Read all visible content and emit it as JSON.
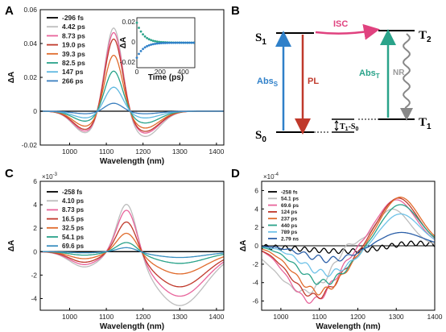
{
  "panels": {
    "A": {
      "letter": "A",
      "xlabel": "Wavelength (nm)",
      "ylabel": "ΔA",
      "xlim": [
        920,
        1420
      ],
      "ylim": [
        -0.02,
        0.06
      ],
      "xticks": [
        1000,
        1100,
        1200,
        1300,
        1400
      ],
      "yticks": [
        -0.02,
        0,
        0.02,
        0.04,
        0.06
      ],
      "ytick_labels": [
        "-0.02",
        "0",
        "0.02",
        "0.04",
        "0.06"
      ],
      "legend": [
        "-296 fs",
        "4.42 ps",
        "8.73 ps",
        "19.0 ps",
        "39.3 ps",
        "82.5 ps",
        "147 ps",
        "266 ps"
      ],
      "inset": {
        "xlabel": "Time (ps)",
        "ylabel": "ΔA",
        "xticks": [
          0,
          200,
          400
        ],
        "yticks": [
          "0.02",
          "0",
          "-0.02"
        ]
      }
    },
    "B": {
      "letter": "B",
      "states": [
        "S",
        "1",
        "S",
        "0",
        "T",
        "2",
        "T",
        "1"
      ],
      "labels": {
        "isc": "ISC",
        "pl": "PL",
        "abs_s": "Abs",
        "abs_s_sub": "S",
        "abs_t": "Abs",
        "abs_t_sub": "T",
        "nr": "NR",
        "t1s0": "T",
        "t1s0_sub1": "1",
        "t1s0_mid": "-S",
        "t1s0_sub2": "0"
      }
    },
    "C": {
      "letter": "C",
      "xlabel": "Wavelength (nm)",
      "ylabel": "ΔA",
      "exponent": "×10",
      "exponent_power": "-3",
      "xlim": [
        920,
        1420
      ],
      "ylim": [
        -5,
        6
      ],
      "xticks": [
        1000,
        1100,
        1200,
        1300,
        1400
      ],
      "yticks": [
        -4,
        -2,
        0,
        2,
        4,
        6
      ],
      "legend": [
        "-258 fs",
        "4.10 ps",
        "8.73 ps",
        "16.5 ps",
        "32.5 ps",
        "54.1 ps",
        "69.6 ps"
      ]
    },
    "D": {
      "letter": "D",
      "xlabel": "Wavelength (nm)",
      "ylabel": "ΔA",
      "exponent": "×10",
      "exponent_power": "-4",
      "xlim": [
        950,
        1400
      ],
      "ylim": [
        -7,
        7
      ],
      "xticks": [
        1000,
        1100,
        1200,
        1300,
        1400
      ],
      "yticks": [
        -6,
        -4,
        -2,
        0,
        2,
        4,
        6
      ],
      "legend": [
        "-258 fs",
        "54.1 ps",
        "69.6 ps",
        "124 ps",
        "237 ps",
        "440 ps",
        "789 ps",
        "2.79 ns"
      ]
    }
  },
  "colors": {
    "A": [
      "#000000",
      "#bdbdbd",
      "#e8649b",
      "#c0392b",
      "#e06b2c",
      "#2aa38a",
      "#5fb8e0",
      "#3a7fbf"
    ],
    "C": [
      "#000000",
      "#bdbdbd",
      "#e8649b",
      "#c0392b",
      "#e06b2c",
      "#2aa38a",
      "#3a8fc0"
    ],
    "D": [
      "#000000",
      "#bdbdbd",
      "#e8649b",
      "#c0392b",
      "#e06b2c",
      "#2aa38a",
      "#6fc2e8",
      "#2b5fa8"
    ],
    "B_isc": "#e0427f",
    "B_pl": "#c0392b",
    "B_abs_s": "#2f80c9",
    "B_abs_t": "#2aa38a",
    "B_nr": "#888888"
  },
  "chart_data": [
    {
      "type": "line",
      "panel": "A",
      "xlabel": "Wavelength (nm)",
      "ylabel": "ΔA",
      "xlim": [
        920,
        1420
      ],
      "ylim": [
        -0.02,
        0.06
      ],
      "series": [
        {
          "name": "-296 fs",
          "gauss": [
            [
              1120,
              0.0,
              25
            ]
          ]
        },
        {
          "name": "4.42 ps",
          "gauss": [
            [
              1120,
              0.052,
              24
            ],
            [
              1045,
              -0.013,
              35
            ],
            [
              1205,
              -0.015,
              40
            ]
          ]
        },
        {
          "name": "8.73 ps",
          "gauss": [
            [
              1120,
              0.049,
              24
            ],
            [
              1045,
              -0.012,
              35
            ],
            [
              1205,
              -0.013,
              40
            ]
          ]
        },
        {
          "name": "19.0 ps",
          "gauss": [
            [
              1120,
              0.045,
              24
            ],
            [
              1045,
              -0.011,
              35
            ],
            [
              1205,
              -0.012,
              40
            ]
          ]
        },
        {
          "name": "39.3 ps",
          "gauss": [
            [
              1120,
              0.035,
              24
            ],
            [
              1045,
              -0.009,
              35
            ],
            [
              1205,
              -0.01,
              40
            ]
          ]
        },
        {
          "name": "82.5 ps",
          "gauss": [
            [
              1120,
              0.025,
              24
            ],
            [
              1045,
              -0.006,
              35
            ],
            [
              1205,
              -0.007,
              40
            ]
          ]
        },
        {
          "name": "147 ps",
          "gauss": [
            [
              1120,
              0.015,
              24
            ],
            [
              1045,
              -0.004,
              35
            ],
            [
              1205,
              -0.004,
              40
            ]
          ]
        },
        {
          "name": "266 ps",
          "gauss": [
            [
              1120,
              0.005,
              24
            ],
            [
              1045,
              -0.0015,
              35
            ],
            [
              1205,
              -0.0015,
              40
            ]
          ]
        }
      ],
      "inset": {
        "xlabel": "Time (ps)",
        "ylabel": "ΔA",
        "xlim": [
          0,
          500
        ],
        "ylim": [
          -0.025,
          0.025
        ],
        "series": [
          {
            "name": "positive",
            "amplitude": 0.02,
            "tau": 60
          },
          {
            "name": "negative",
            "amplitude": -0.015,
            "tau": 60
          }
        ]
      }
    },
    {
      "type": "line",
      "panel": "C",
      "xlabel": "Wavelength (nm)",
      "ylabel": "ΔA ×10^-3",
      "xlim": [
        920,
        1420
      ],
      "ylim": [
        -5,
        6
      ],
      "series": [
        {
          "name": "-258 fs",
          "gauss": [
            [
              1160,
              0.0,
              25
            ]
          ]
        },
        {
          "name": "4.10 ps",
          "gauss": [
            [
              1157,
              4.6,
              27
            ],
            [
              1040,
              -1.3,
              40
            ],
            [
              1300,
              -4.6,
              70
            ]
          ]
        },
        {
          "name": "8.73 ps",
          "gauss": [
            [
              1157,
              4.0,
              27
            ],
            [
              1040,
              -1.1,
              40
            ],
            [
              1300,
              -3.8,
              70
            ]
          ]
        },
        {
          "name": "16.5 ps",
          "gauss": [
            [
              1157,
              2.9,
              27
            ],
            [
              1040,
              -0.9,
              40
            ],
            [
              1300,
              -3.0,
              70
            ]
          ]
        },
        {
          "name": "32.5 ps",
          "gauss": [
            [
              1157,
              1.8,
              27
            ],
            [
              1040,
              -0.6,
              40
            ],
            [
              1300,
              -1.9,
              70
            ]
          ]
        },
        {
          "name": "54.1 ps",
          "gauss": [
            [
              1157,
              0.9,
              27
            ],
            [
              1040,
              -0.3,
              40
            ],
            [
              1300,
              -1.0,
              70
            ]
          ]
        },
        {
          "name": "69.6 ps",
          "gauss": [
            [
              1157,
              0.4,
              27
            ],
            [
              1040,
              -0.1,
              40
            ],
            [
              1300,
              -0.5,
              70
            ]
          ]
        }
      ]
    },
    {
      "type": "line",
      "panel": "D",
      "xlabel": "Wavelength (nm)",
      "ylabel": "ΔA ×10^-4",
      "xlim": [
        950,
        1400
      ],
      "ylim": [
        -7,
        7
      ],
      "series": [
        {
          "name": "-258 fs",
          "gauss": [
            [
              1175,
              -0.6,
              120
            ],
            [
              1330,
              0.5,
              60
            ]
          ]
        },
        {
          "name": "54.1 ps",
          "gauss": [
            [
              1060,
              -5.0,
              70
            ],
            [
              1170,
              1.2,
              25
            ],
            [
              1290,
              4.0,
              45
            ]
          ]
        },
        {
          "name": "69.6 ps",
          "gauss": [
            [
              1080,
              -6.0,
              60
            ],
            [
              1300,
              5.0,
              50
            ]
          ]
        },
        {
          "name": "124 ps",
          "gauss": [
            [
              1090,
              -5.5,
              65
            ],
            [
              1305,
              5.2,
              50
            ]
          ]
        },
        {
          "name": "237 ps",
          "gauss": [
            [
              1100,
              -5.0,
              65
            ],
            [
              1310,
              5.3,
              50
            ]
          ]
        },
        {
          "name": "440 ps",
          "gauss": [
            [
              1110,
              -4.0,
              65
            ],
            [
              1310,
              4.5,
              50
            ]
          ]
        },
        {
          "name": "789 ps",
          "gauss": [
            [
              1120,
              -3.0,
              65
            ],
            [
              1310,
              3.5,
              50
            ]
          ]
        },
        {
          "name": "2.79 ns",
          "gauss": [
            [
              1130,
              -1.5,
              70
            ],
            [
              1310,
              1.5,
              55
            ]
          ]
        }
      ]
    }
  ]
}
